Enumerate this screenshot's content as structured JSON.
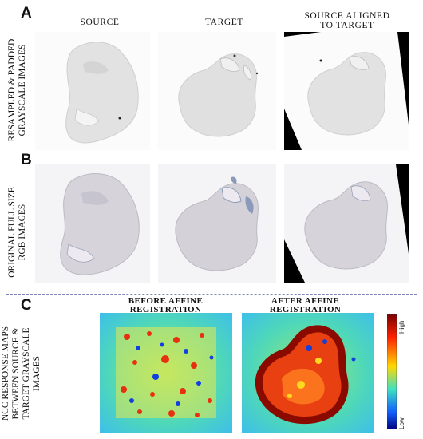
{
  "panels": {
    "a": {
      "letter": "A",
      "row_label": [
        "RESAMPLED & PADDED",
        "GRAYSCALE IMAGES"
      ]
    },
    "b": {
      "letter": "B",
      "row_label": [
        "ORIGINAL FULL SIZE",
        "RGB IMAGES"
      ]
    },
    "c": {
      "letter": "C",
      "row_label": [
        "NCC RESPONSE MAPS",
        "BETWEEN SOURCE &",
        "TARGET GRAYSCALE",
        "IMAGES"
      ]
    }
  },
  "columns": {
    "source": "SOURCE",
    "target": "TARGET",
    "aligned": [
      "SOURCE ALIGNED",
      "TO TARGET"
    ]
  },
  "maps": {
    "before": [
      "BEFORE AFFINE",
      "REGISTRATION"
    ],
    "after": [
      "AFTER AFFINE",
      "REGISTRATION"
    ]
  },
  "colorbar": {
    "high": "High",
    "low": "Low",
    "colors": [
      "#7a0000",
      "#ff2000",
      "#ffd800",
      "#40e0c0",
      "#1060ff",
      "#000080"
    ]
  },
  "tissue_colors": {
    "grayscale": "#e4e4e4",
    "rgb": "#d8d6dc",
    "stain": "#8a9ab8"
  }
}
